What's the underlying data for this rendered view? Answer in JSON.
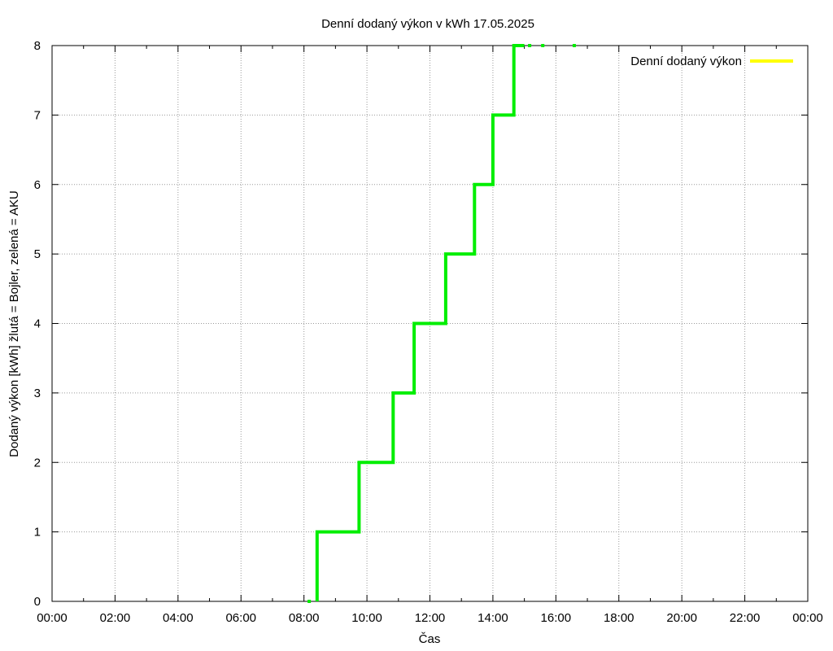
{
  "chart_data": {
    "type": "line",
    "title": "Denní dodaný výkon v kWh 17.05.2025",
    "xlabel": "Čas",
    "ylabel": "Dodaný výkon [kWh]  žlutá = Bojler, zelená = AKU",
    "xlim": [
      "00:00",
      "24:00"
    ],
    "ylim": [
      0,
      8
    ],
    "x_ticks": [
      "00:00",
      "02:00",
      "04:00",
      "06:00",
      "08:00",
      "10:00",
      "12:00",
      "14:00",
      "16:00",
      "18:00",
      "20:00",
      "22:00",
      "00:00"
    ],
    "y_ticks": [
      "0",
      "1",
      "2",
      "3",
      "4",
      "5",
      "6",
      "7",
      "8"
    ],
    "grid": true,
    "legend": {
      "placement": "top-right",
      "entries": [
        {
          "label": "Denní dodaný výkon",
          "color": "#ffff00"
        }
      ]
    },
    "series": [
      {
        "color": "#00ee00",
        "step": true,
        "points": [
          {
            "x": "08:25",
            "y": 0
          },
          {
            "x": "08:25",
            "y": 1
          },
          {
            "x": "09:45",
            "y": 1
          },
          {
            "x": "09:45",
            "y": 2
          },
          {
            "x": "10:50",
            "y": 2
          },
          {
            "x": "10:50",
            "y": 3
          },
          {
            "x": "11:30",
            "y": 3
          },
          {
            "x": "11:30",
            "y": 4
          },
          {
            "x": "12:30",
            "y": 4
          },
          {
            "x": "12:30",
            "y": 5
          },
          {
            "x": "13:25",
            "y": 5
          },
          {
            "x": "13:25",
            "y": 6
          },
          {
            "x": "14:00",
            "y": 6
          },
          {
            "x": "14:00",
            "y": 7
          },
          {
            "x": "14:40",
            "y": 7
          },
          {
            "x": "14:40",
            "y": 8
          },
          {
            "x": "15:00",
            "y": 8
          }
        ],
        "isolated_points": [
          {
            "x": "08:10",
            "y": 0
          },
          {
            "x": "15:10",
            "y": 8
          },
          {
            "x": "15:35",
            "y": 8
          },
          {
            "x": "16:35",
            "y": 8
          }
        ]
      }
    ]
  }
}
